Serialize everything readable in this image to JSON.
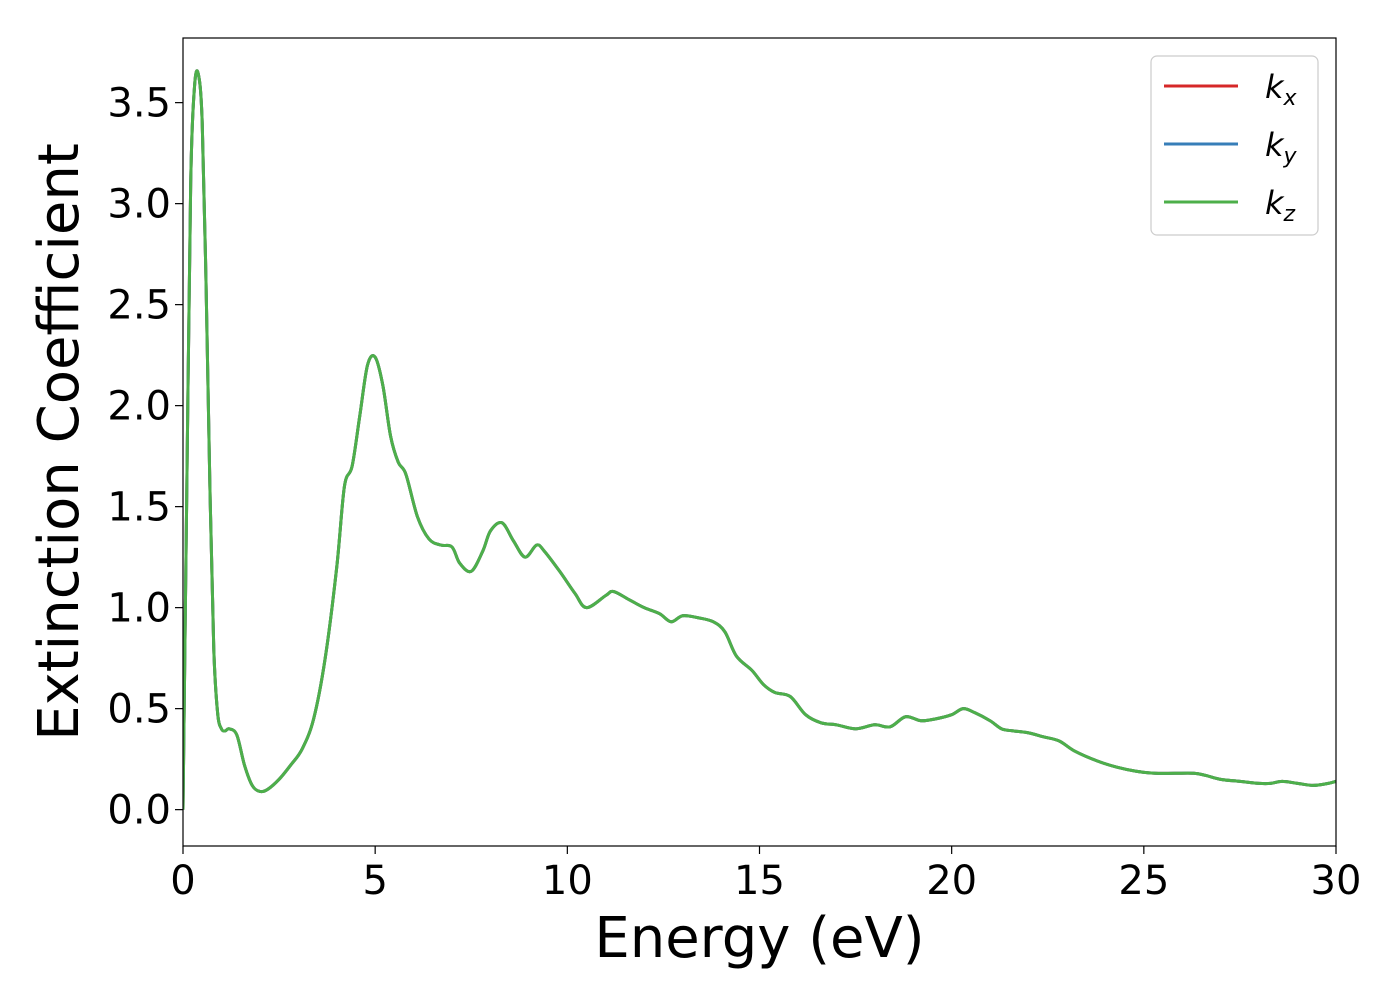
{
  "chart_data": {
    "type": "line",
    "title": "",
    "xlabel": "Energy (eV)",
    "ylabel": "Extinction Coefficient",
    "xlim": [
      0,
      30
    ],
    "ylim": [
      -0.18,
      3.82
    ],
    "xticks": [
      0,
      5,
      10,
      15,
      20,
      25,
      30
    ],
    "xtick_labels": [
      "0",
      "5",
      "10",
      "15",
      "20",
      "25",
      "30"
    ],
    "yticks": [
      0.0,
      0.5,
      1.0,
      1.5,
      2.0,
      2.5,
      3.0,
      3.5
    ],
    "ytick_labels": [
      "0.0",
      "0.5",
      "1.0",
      "1.5",
      "2.0",
      "2.5",
      "3.0",
      "3.5"
    ],
    "grid": false,
    "legend_position": "top-right",
    "x": [
      0,
      0.1,
      0.2,
      0.3,
      0.4,
      0.5,
      0.6,
      0.7,
      0.8,
      0.9,
      1.0,
      1.1,
      1.2,
      1.4,
      1.6,
      1.8,
      2.0,
      2.2,
      2.5,
      2.8,
      3.1,
      3.4,
      3.7,
      4.0,
      4.2,
      4.4,
      4.6,
      4.8,
      5.0,
      5.2,
      5.4,
      5.6,
      5.8,
      6.1,
      6.4,
      6.7,
      7.0,
      7.2,
      7.5,
      7.8,
      8.0,
      8.3,
      8.6,
      8.9,
      9.2,
      9.4,
      9.8,
      10.2,
      10.5,
      11.0,
      11.2,
      11.6,
      12.0,
      12.4,
      12.7,
      13.0,
      13.4,
      13.8,
      14.1,
      14.4,
      14.8,
      15.1,
      15.4,
      15.8,
      16.2,
      16.6,
      17.0,
      17.5,
      18.0,
      18.4,
      18.8,
      19.2,
      19.6,
      20.0,
      20.3,
      20.6,
      21.0,
      21.3,
      21.6,
      22.0,
      22.4,
      22.8,
      23.2,
      23.8,
      24.3,
      24.8,
      25.3,
      25.8,
      26.3,
      26.6,
      27.0,
      27.5,
      28.0,
      28.3,
      28.6,
      29.0,
      29.4,
      29.8,
      30.0
    ],
    "series": [
      {
        "name": "k_x",
        "label_main": "k",
        "label_sub": "x",
        "color": "#d62728",
        "values": [
          0.0,
          1.6,
          3.1,
          3.58,
          3.64,
          3.4,
          2.6,
          1.6,
          0.8,
          0.48,
          0.4,
          0.39,
          0.4,
          0.37,
          0.22,
          0.12,
          0.09,
          0.1,
          0.15,
          0.22,
          0.3,
          0.45,
          0.75,
          1.2,
          1.6,
          1.7,
          1.95,
          2.2,
          2.24,
          2.1,
          1.85,
          1.72,
          1.66,
          1.45,
          1.34,
          1.31,
          1.3,
          1.22,
          1.18,
          1.28,
          1.38,
          1.42,
          1.33,
          1.25,
          1.31,
          1.28,
          1.18,
          1.07,
          1.0,
          1.06,
          1.08,
          1.04,
          1.0,
          0.97,
          0.93,
          0.96,
          0.95,
          0.93,
          0.88,
          0.76,
          0.69,
          0.62,
          0.58,
          0.56,
          0.47,
          0.43,
          0.42,
          0.4,
          0.42,
          0.41,
          0.46,
          0.44,
          0.45,
          0.47,
          0.5,
          0.48,
          0.44,
          0.4,
          0.39,
          0.38,
          0.36,
          0.34,
          0.29,
          0.24,
          0.21,
          0.19,
          0.18,
          0.18,
          0.18,
          0.17,
          0.15,
          0.14,
          0.13,
          0.13,
          0.14,
          0.13,
          0.12,
          0.13,
          0.14
        ]
      },
      {
        "name": "k_y",
        "label_main": "k",
        "label_sub": "y",
        "color": "#377eb8",
        "values": [
          0.0,
          1.6,
          3.1,
          3.58,
          3.64,
          3.4,
          2.6,
          1.6,
          0.8,
          0.48,
          0.4,
          0.39,
          0.4,
          0.37,
          0.22,
          0.12,
          0.09,
          0.1,
          0.15,
          0.22,
          0.3,
          0.45,
          0.75,
          1.2,
          1.6,
          1.7,
          1.95,
          2.2,
          2.24,
          2.1,
          1.85,
          1.72,
          1.66,
          1.45,
          1.34,
          1.31,
          1.3,
          1.22,
          1.18,
          1.28,
          1.38,
          1.42,
          1.33,
          1.25,
          1.31,
          1.28,
          1.18,
          1.07,
          1.0,
          1.06,
          1.08,
          1.04,
          1.0,
          0.97,
          0.93,
          0.96,
          0.95,
          0.93,
          0.88,
          0.76,
          0.69,
          0.62,
          0.58,
          0.56,
          0.47,
          0.43,
          0.42,
          0.4,
          0.42,
          0.41,
          0.46,
          0.44,
          0.45,
          0.47,
          0.5,
          0.48,
          0.44,
          0.4,
          0.39,
          0.38,
          0.36,
          0.34,
          0.29,
          0.24,
          0.21,
          0.19,
          0.18,
          0.18,
          0.18,
          0.17,
          0.15,
          0.14,
          0.13,
          0.13,
          0.14,
          0.13,
          0.12,
          0.13,
          0.14
        ]
      },
      {
        "name": "k_z",
        "label_main": "k",
        "label_sub": "z",
        "color": "#4daf4a",
        "values": [
          0.0,
          1.6,
          3.1,
          3.58,
          3.64,
          3.4,
          2.6,
          1.6,
          0.8,
          0.48,
          0.4,
          0.39,
          0.4,
          0.37,
          0.22,
          0.12,
          0.09,
          0.1,
          0.15,
          0.22,
          0.3,
          0.45,
          0.75,
          1.2,
          1.6,
          1.7,
          1.95,
          2.2,
          2.24,
          2.1,
          1.85,
          1.72,
          1.66,
          1.45,
          1.34,
          1.31,
          1.3,
          1.22,
          1.18,
          1.28,
          1.38,
          1.42,
          1.33,
          1.25,
          1.31,
          1.28,
          1.18,
          1.07,
          1.0,
          1.06,
          1.08,
          1.04,
          1.0,
          0.97,
          0.93,
          0.96,
          0.95,
          0.93,
          0.88,
          0.76,
          0.69,
          0.62,
          0.58,
          0.56,
          0.47,
          0.43,
          0.42,
          0.4,
          0.42,
          0.41,
          0.46,
          0.44,
          0.45,
          0.47,
          0.5,
          0.48,
          0.44,
          0.4,
          0.39,
          0.38,
          0.36,
          0.34,
          0.29,
          0.24,
          0.21,
          0.19,
          0.18,
          0.18,
          0.18,
          0.17,
          0.15,
          0.14,
          0.13,
          0.13,
          0.14,
          0.13,
          0.12,
          0.13,
          0.14
        ]
      }
    ]
  }
}
